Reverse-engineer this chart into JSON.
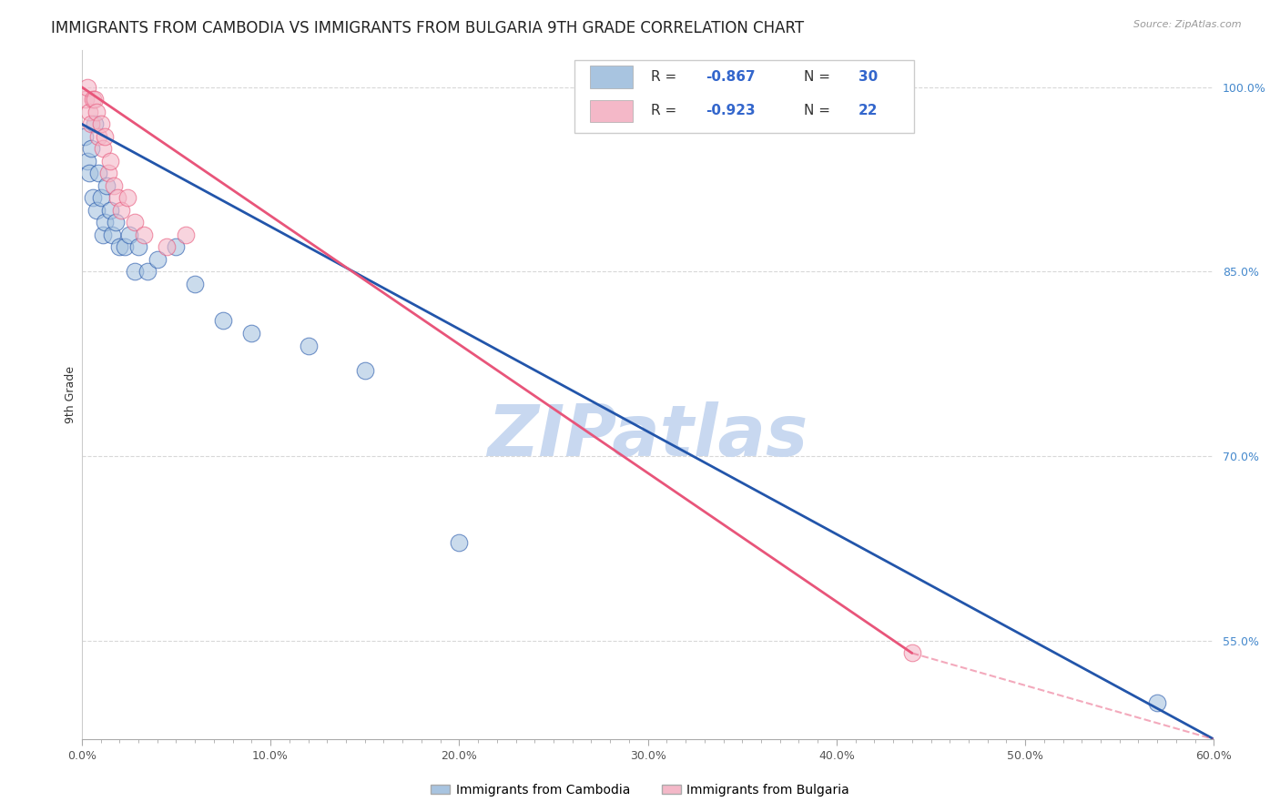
{
  "title": "IMMIGRANTS FROM CAMBODIA VS IMMIGRANTS FROM BULGARIA 9TH GRADE CORRELATION CHART",
  "source": "Source: ZipAtlas.com",
  "ylabel": "9th Grade",
  "x_tick_labels": [
    "0.0%",
    "",
    "",
    "",
    "",
    "",
    "",
    "",
    "",
    "",
    "10.0%",
    "",
    "",
    "",
    "",
    "",
    "",
    "",
    "",
    "",
    "20.0%",
    "",
    "",
    "",
    "",
    "",
    "",
    "",
    "",
    "",
    "30.0%",
    "",
    "",
    "",
    "",
    "",
    "",
    "",
    "",
    "",
    "40.0%",
    "",
    "",
    "",
    "",
    "",
    "",
    "",
    "",
    "",
    "50.0%",
    "",
    "",
    "",
    "",
    "",
    "",
    "",
    "",
    "",
    "60.0%"
  ],
  "x_tick_values": [
    0,
    1,
    2,
    3,
    4,
    5,
    6,
    7,
    8,
    9,
    10,
    11,
    12,
    13,
    14,
    15,
    16,
    17,
    18,
    19,
    20,
    21,
    22,
    23,
    24,
    25,
    26,
    27,
    28,
    29,
    30,
    31,
    32,
    33,
    34,
    35,
    36,
    37,
    38,
    39,
    40,
    41,
    42,
    43,
    44,
    45,
    46,
    47,
    48,
    49,
    50,
    51,
    52,
    53,
    54,
    55,
    56,
    57,
    58,
    59,
    60
  ],
  "x_major_ticks": [
    0,
    10,
    20,
    30,
    40,
    50,
    60
  ],
  "x_major_labels": [
    "0.0%",
    "10.0%",
    "20.0%",
    "30.0%",
    "40.0%",
    "50.0%",
    "60.0%"
  ],
  "y_tick_labels_right": [
    "100.0%",
    "85.0%",
    "70.0%",
    "55.0%"
  ],
  "y_tick_values_right": [
    100,
    85,
    70,
    55
  ],
  "xlim": [
    0,
    60
  ],
  "ylim": [
    47,
    103
  ],
  "color_cambodia": "#a8c4e0",
  "color_bulgaria": "#f4b8c8",
  "color_line_cambodia": "#2255aa",
  "color_line_bulgaria": "#e8557a",
  "watermark": "ZIPatlas",
  "watermark_color": "#c8d8f0",
  "background_color": "#ffffff",
  "grid_color": "#d8d8d8",
  "title_fontsize": 12,
  "axis_label_fontsize": 9,
  "tick_fontsize": 9,
  "scatter_cambodia_x": [
    0.15,
    0.3,
    0.4,
    0.5,
    0.6,
    0.7,
    0.8,
    0.9,
    1.0,
    1.1,
    1.2,
    1.3,
    1.5,
    1.6,
    1.8,
    2.0,
    2.3,
    2.5,
    2.8,
    3.0,
    3.5,
    4.0,
    5.0,
    6.0,
    7.5,
    9.0,
    12.0,
    15.0,
    20.0,
    57.0
  ],
  "scatter_cambodia_y": [
    96,
    94,
    93,
    95,
    91,
    97,
    90,
    93,
    91,
    88,
    89,
    92,
    90,
    88,
    89,
    87,
    87,
    88,
    85,
    87,
    85,
    86,
    87,
    84,
    81,
    80,
    79,
    77,
    63,
    50
  ],
  "scatter_bulgaria_x": [
    0.2,
    0.3,
    0.4,
    0.5,
    0.6,
    0.7,
    0.8,
    0.9,
    1.0,
    1.1,
    1.2,
    1.4,
    1.5,
    1.7,
    1.9,
    2.1,
    2.4,
    2.8,
    3.3,
    4.5,
    5.5,
    44.0
  ],
  "scatter_bulgaria_y": [
    99,
    100,
    98,
    97,
    99,
    99,
    98,
    96,
    97,
    95,
    96,
    93,
    94,
    92,
    91,
    90,
    91,
    89,
    88,
    87,
    88,
    54
  ],
  "regression_cambodia_x0": 0,
  "regression_cambodia_y0": 97,
  "regression_cambodia_x1": 60,
  "regression_cambodia_y1": 47,
  "regression_bulgaria_solid_x0": 0,
  "regression_bulgaria_solid_y0": 100,
  "regression_bulgaria_solid_x1": 44,
  "regression_bulgaria_solid_y1": 54,
  "regression_bulgaria_dashed_x0": 44,
  "regression_bulgaria_dashed_y0": 54,
  "regression_bulgaria_dashed_x1": 60,
  "regression_bulgaria_dashed_y1": 47
}
